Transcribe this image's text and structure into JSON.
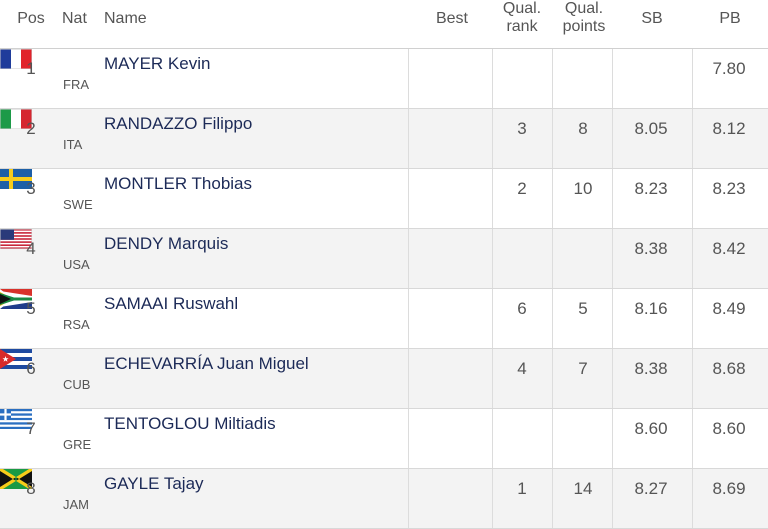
{
  "table": {
    "columns": [
      "Pos",
      "Nat",
      "Name",
      "Best",
      "Qual.\nrank",
      "Qual.\npoints",
      "SB",
      "PB"
    ],
    "rows": [
      [
        "1",
        "FRA",
        "MAYER Kevin",
        null,
        null,
        null,
        null,
        "7.80"
      ],
      [
        "2",
        "ITA",
        "RANDAZZO Filippo",
        null,
        "3",
        "8",
        "8.05",
        "8.12"
      ],
      [
        "3",
        "SWE",
        "MONTLER Thobias",
        null,
        "2",
        "10",
        "8.23",
        "8.23"
      ],
      [
        "4",
        "USA",
        "DENDY Marquis",
        null,
        null,
        null,
        "8.38",
        "8.42"
      ],
      [
        "5",
        "RSA",
        "SAMAAI Ruswahl",
        null,
        "6",
        "5",
        "8.16",
        "8.49"
      ],
      [
        "6",
        "CUB",
        "ECHEVARRÍA Juan Miguel",
        null,
        "4",
        "7",
        "8.38",
        "8.68"
      ],
      [
        "7",
        "GRE",
        "TENTOGLOU Miltiadis",
        null,
        null,
        null,
        "8.60",
        "8.60"
      ],
      [
        "8",
        "JAM",
        "GAYLE Tajay",
        null,
        "1",
        "14",
        "8.27",
        "8.69"
      ]
    ]
  }
}
